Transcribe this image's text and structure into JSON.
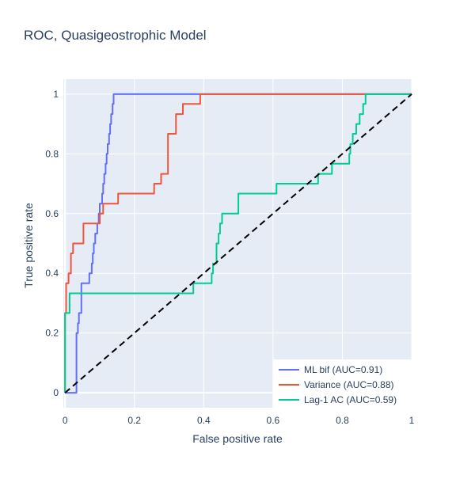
{
  "chart_data": {
    "type": "line",
    "title": "ROC, Quasigeostrophic Model",
    "xlabel": "False positive rate",
    "ylabel": "True positive rate",
    "xlim": [
      -0.005,
      1.0
    ],
    "ylim": [
      -0.05,
      1.05
    ],
    "x_ticks": [
      "0",
      "0.2",
      "0.4",
      "0.6",
      "0.8",
      "1"
    ],
    "y_ticks": [
      "0",
      "0.2",
      "0.4",
      "0.6",
      "0.8",
      "1"
    ],
    "grid": true,
    "legend_position": "bottom-right",
    "background_color": "#e5ecf6",
    "series": [
      {
        "name": "ML bif (AUC=0.91)",
        "color": "#636efa",
        "x": [
          0,
          0.033,
          0.033,
          0.037,
          0.037,
          0.04,
          0.04,
          0.047,
          0.047,
          0.07,
          0.07,
          0.077,
          0.077,
          0.08,
          0.08,
          0.083,
          0.083,
          0.087,
          0.087,
          0.093,
          0.093,
          0.097,
          0.097,
          0.1,
          0.1,
          0.107,
          0.107,
          0.11,
          0.11,
          0.113,
          0.113,
          0.117,
          0.117,
          0.12,
          0.12,
          0.123,
          0.123,
          0.127,
          0.127,
          0.13,
          0.13,
          0.133,
          0.133,
          0.137,
          0.137,
          0.14,
          0.14,
          0.143,
          0.143,
          0.147,
          0.147,
          0.15,
          0.15,
          0.16,
          0.16,
          0.19,
          0.19,
          0.193,
          0.193,
          1.0
        ],
        "y": [
          0,
          0,
          0.2,
          0.2,
          0.233,
          0.233,
          0.267,
          0.267,
          0.367,
          0.367,
          0.4,
          0.4,
          0.433,
          0.433,
          0.467,
          0.467,
          0.5,
          0.5,
          0.533,
          0.533,
          0.567,
          0.567,
          0.6,
          0.6,
          0.633,
          0.633,
          0.667,
          0.667,
          0.7,
          0.7,
          0.733,
          0.733,
          0.767,
          0.767,
          0.8,
          0.8,
          0.833,
          0.833,
          0.867,
          0.867,
          0.9,
          0.9,
          0.933,
          0.933,
          0.967,
          0.967,
          1,
          1,
          1,
          1,
          1,
          1,
          1,
          1,
          1,
          1,
          1,
          1,
          1,
          1
        ]
      },
      {
        "name": "Variance (AUC=0.88)",
        "color": "#ef553b",
        "x": [
          0,
          0,
          0.003,
          0.003,
          0.01,
          0.01,
          0.017,
          0.017,
          0.023,
          0.023,
          0.027,
          0.027,
          0.033,
          0.033,
          0.053,
          0.053,
          0.1,
          0.1,
          0.11,
          0.11,
          0.153,
          0.153,
          0.257,
          0.257,
          0.277,
          0.277,
          0.297,
          0.297,
          0.3,
          0.3,
          0.32,
          0.32,
          0.34,
          0.34,
          0.39,
          0.39,
          0.39,
          1.0
        ],
        "y": [
          0,
          0.267,
          0.267,
          0.367,
          0.367,
          0.4,
          0.4,
          0.467,
          0.467,
          0.5,
          0.5,
          0.5,
          0.5,
          0.5,
          0.5,
          0.567,
          0.567,
          0.6,
          0.6,
          0.633,
          0.633,
          0.667,
          0.667,
          0.7,
          0.7,
          0.733,
          0.733,
          0.867,
          0.867,
          0.867,
          0.867,
          0.933,
          0.933,
          0.967,
          0.967,
          1,
          1,
          1
        ]
      },
      {
        "name": "Lag-1 AC (AUC=0.59)",
        "color": "#00cc96",
        "x": [
          0,
          0,
          0.003,
          0.003,
          0.013,
          0.013,
          0.37,
          0.37,
          0.423,
          0.423,
          0.427,
          0.427,
          0.437,
          0.437,
          0.44,
          0.44,
          0.443,
          0.443,
          0.447,
          0.447,
          0.453,
          0.453,
          0.463,
          0.463,
          0.5,
          0.5,
          0.61,
          0.61,
          0.73,
          0.73,
          0.77,
          0.77,
          0.82,
          0.82,
          0.823,
          0.823,
          0.83,
          0.83,
          0.84,
          0.84,
          0.85,
          0.85,
          0.86,
          0.86,
          0.867,
          0.867,
          1.0
        ],
        "y": [
          0,
          0.267,
          0.267,
          0.267,
          0.267,
          0.333,
          0.333,
          0.367,
          0.367,
          0.4,
          0.4,
          0.433,
          0.433,
          0.5,
          0.5,
          0.5,
          0.5,
          0.533,
          0.533,
          0.567,
          0.567,
          0.6,
          0.6,
          0.6,
          0.6,
          0.667,
          0.667,
          0.7,
          0.7,
          0.733,
          0.733,
          0.767,
          0.767,
          0.8,
          0.8,
          0.833,
          0.833,
          0.867,
          0.867,
          0.9,
          0.9,
          0.933,
          0.933,
          0.967,
          0.967,
          1,
          1
        ]
      },
      {
        "name": "",
        "color": "#000000",
        "dash": "dashed",
        "show_in_legend": false,
        "x": [
          0,
          1
        ],
        "y": [
          0,
          1
        ]
      }
    ]
  }
}
